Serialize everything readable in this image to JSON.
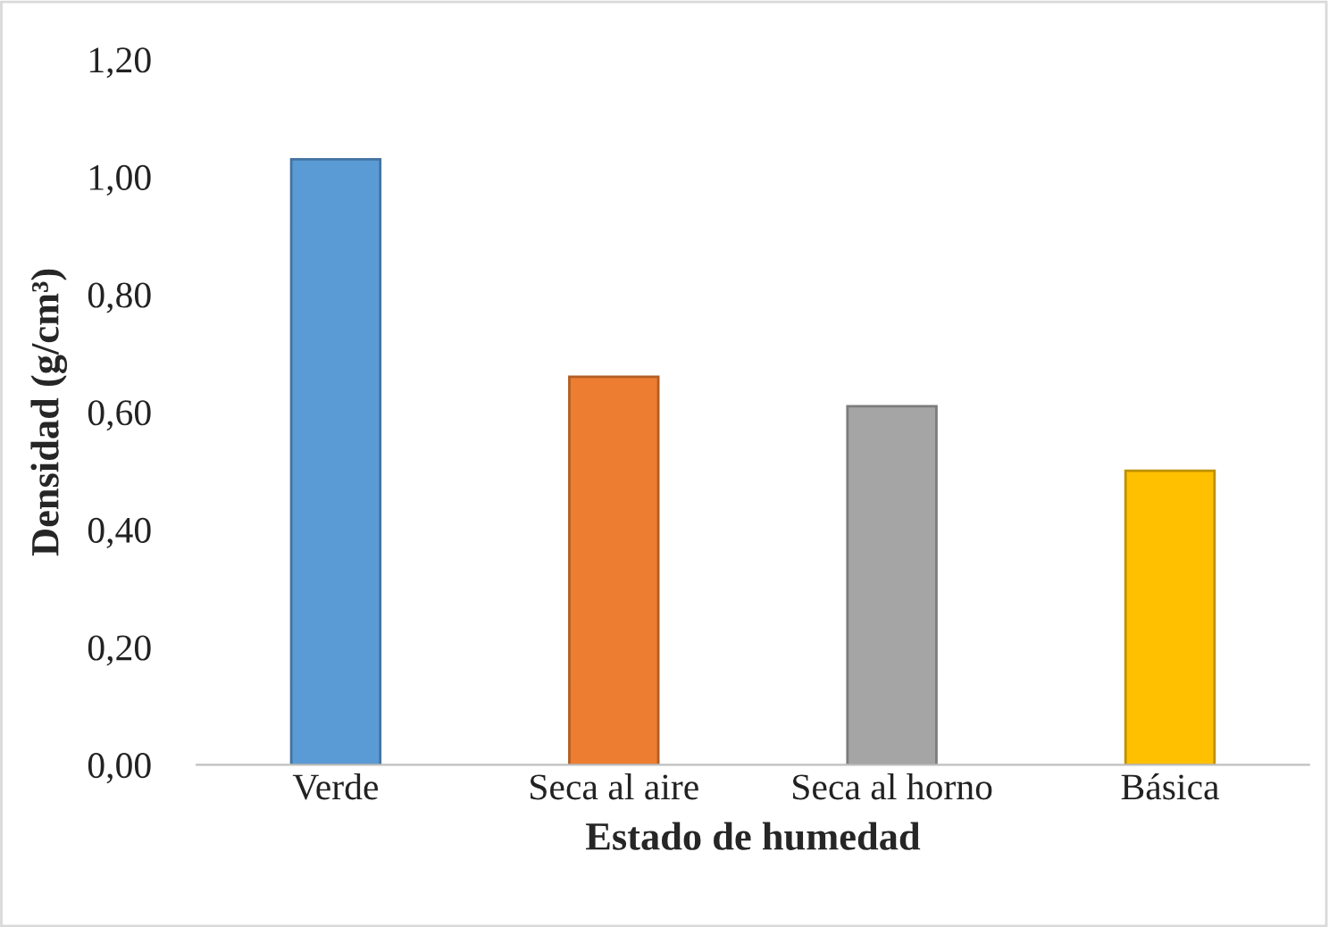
{
  "chart_data": {
    "type": "bar",
    "xlabel": "Estado de humedad",
    "ylabel": "Densidad (g/cm³)",
    "categories": [
      "Verde",
      "Seca al aire",
      "Seca al horno",
      "Básica"
    ],
    "values": [
      1.03,
      0.66,
      0.61,
      0.5
    ],
    "colors": [
      "#5b9bd5",
      "#ed7d31",
      "#a5a5a5",
      "#ffc000"
    ],
    "ylim": [
      0,
      1.2
    ],
    "yticks": [
      {
        "value": 0,
        "label": "0,00"
      },
      {
        "value": 0.2,
        "label": "0,20"
      },
      {
        "value": 0.4,
        "label": "0,40"
      },
      {
        "value": 0.6,
        "label": "0,60"
      },
      {
        "value": 0.8,
        "label": "0,80"
      },
      {
        "value": 1.0,
        "label": "1,00"
      },
      {
        "value": 1.2,
        "label": "1,20"
      }
    ],
    "grid": false,
    "legend": false
  }
}
